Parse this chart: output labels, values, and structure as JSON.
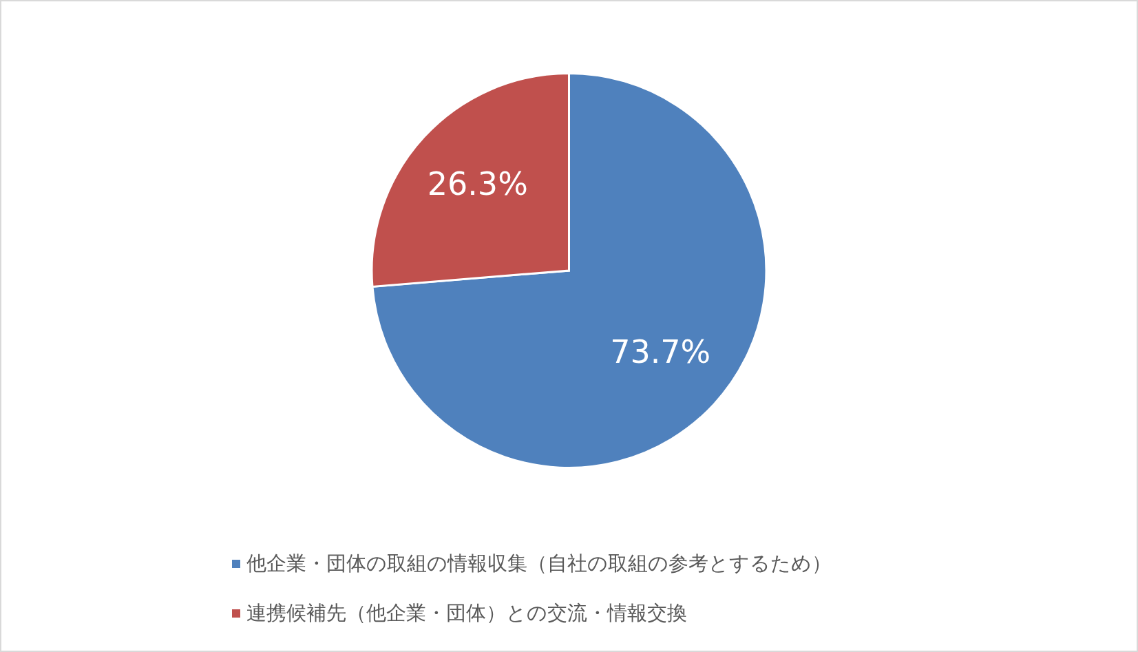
{
  "chart_data": {
    "type": "pie",
    "categories": [
      "他企業・団体の取組の情報収集（自社の取組の参考とするため）",
      "連携候補先（他企業・団体）との交流・情報交換"
    ],
    "values": [
      73.7,
      26.3
    ],
    "colors": [
      "#4f81bd",
      "#c0504d"
    ],
    "value_labels": [
      "73.7%",
      "26.3%"
    ],
    "legend": "bottom"
  }
}
